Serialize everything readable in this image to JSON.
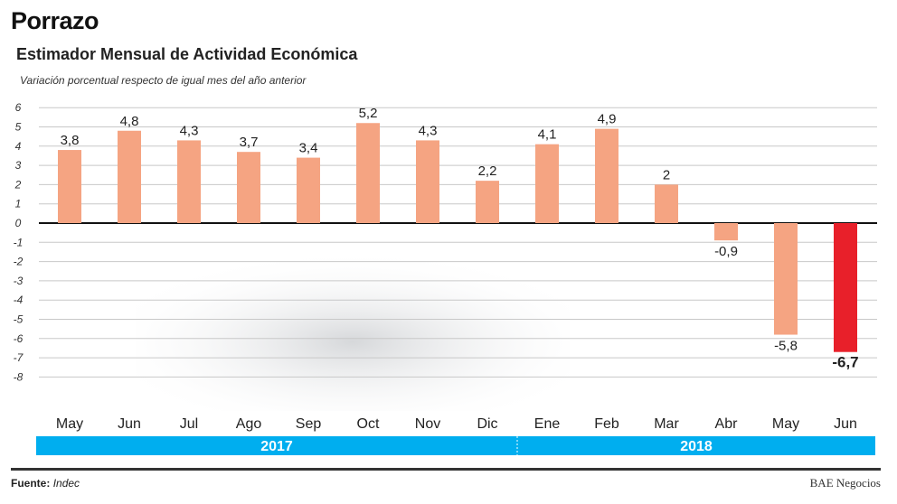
{
  "header": {
    "title": "Porrazo",
    "subtitle": "Estimador Mensual de Actividad Económica"
  },
  "chart_data": {
    "type": "bar",
    "title": "Estimador Mensual de Actividad Económica",
    "ylabel": "Variación porcentual respecto de igual mes del año anterior",
    "xlabel": "",
    "categories": [
      "May",
      "Jun",
      "Jul",
      "Ago",
      "Sep",
      "Oct",
      "Nov",
      "Dic",
      "Ene",
      "Feb",
      "Mar",
      "Abr",
      "May",
      "Jun"
    ],
    "years": [
      {
        "label": "2017",
        "span": 8
      },
      {
        "label": "2018",
        "span": 6
      }
    ],
    "values": [
      3.8,
      4.8,
      4.3,
      3.7,
      3.4,
      5.2,
      4.3,
      2.2,
      4.1,
      4.9,
      2,
      -0.9,
      -5.8,
      -6.7
    ],
    "data_labels": [
      "3,8",
      "4,8",
      "4,3",
      "3,7",
      "3,4",
      "5,2",
      "4,3",
      "2,2",
      "4,1",
      "4,9",
      "2",
      "-0,9",
      "-5,8",
      "-6,7"
    ],
    "yticks": [
      6,
      5,
      4,
      3,
      2,
      1,
      0,
      -1,
      -2,
      -3,
      -4,
      -5,
      -6,
      -7,
      -8
    ],
    "ylim": [
      -8,
      6
    ],
    "grid": true,
    "colors": {
      "bar": "#f5a482",
      "highlight": "#e8202a",
      "year_band": "#00aeef"
    },
    "highlight_index": 13
  },
  "footer": {
    "source_label": "Fuente:",
    "source": "Indec",
    "brand": "BAE Negocios"
  }
}
